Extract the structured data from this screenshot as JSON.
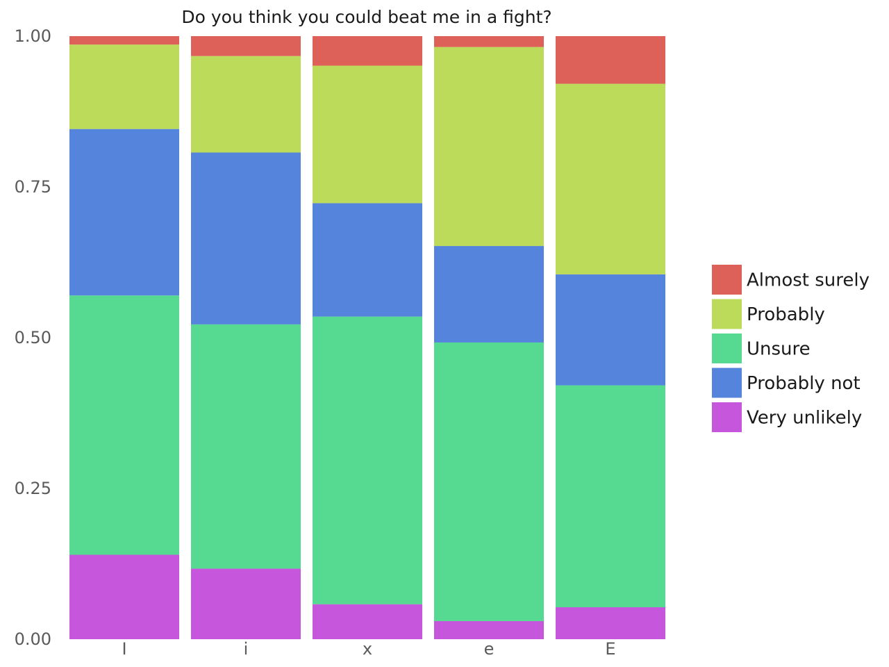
{
  "chart_data": {
    "type": "bar",
    "stacked": true,
    "normalized": true,
    "title": "Do you think you could beat me in a fight?",
    "xlabel": "",
    "ylabel": "",
    "ylim": [
      0,
      1
    ],
    "y_ticks": [
      "0.00",
      "0.25",
      "0.50",
      "0.75",
      "1.00"
    ],
    "y_tick_values": [
      0,
      0.25,
      0.5,
      0.75,
      1.0
    ],
    "categories": [
      "I",
      "i",
      "x",
      "e",
      "E"
    ],
    "grid": false,
    "legend_position": "right",
    "series": [
      {
        "name": "Very unlikely",
        "color": "#c656dc",
        "values": [
          0.14,
          0.117,
          0.058,
          0.03,
          0.053
        ]
      },
      {
        "name": "Unsure",
        "color": "#56da91",
        "values": [
          0.43,
          0.405,
          0.477,
          0.462,
          0.368
        ]
      },
      {
        "name": "Probably not",
        "color": "#5484db",
        "values": [
          0.276,
          0.285,
          0.188,
          0.16,
          0.184
        ]
      },
      {
        "name": "Probably",
        "color": "#bddb5a",
        "values": [
          0.14,
          0.16,
          0.228,
          0.33,
          0.316
        ]
      },
      {
        "name": "Almost surely",
        "color": "#de6159",
        "values": [
          0.014,
          0.033,
          0.049,
          0.018,
          0.079
        ]
      }
    ],
    "legend_order": [
      "Almost surely",
      "Probably",
      "Unsure",
      "Probably not",
      "Very unlikely"
    ]
  }
}
